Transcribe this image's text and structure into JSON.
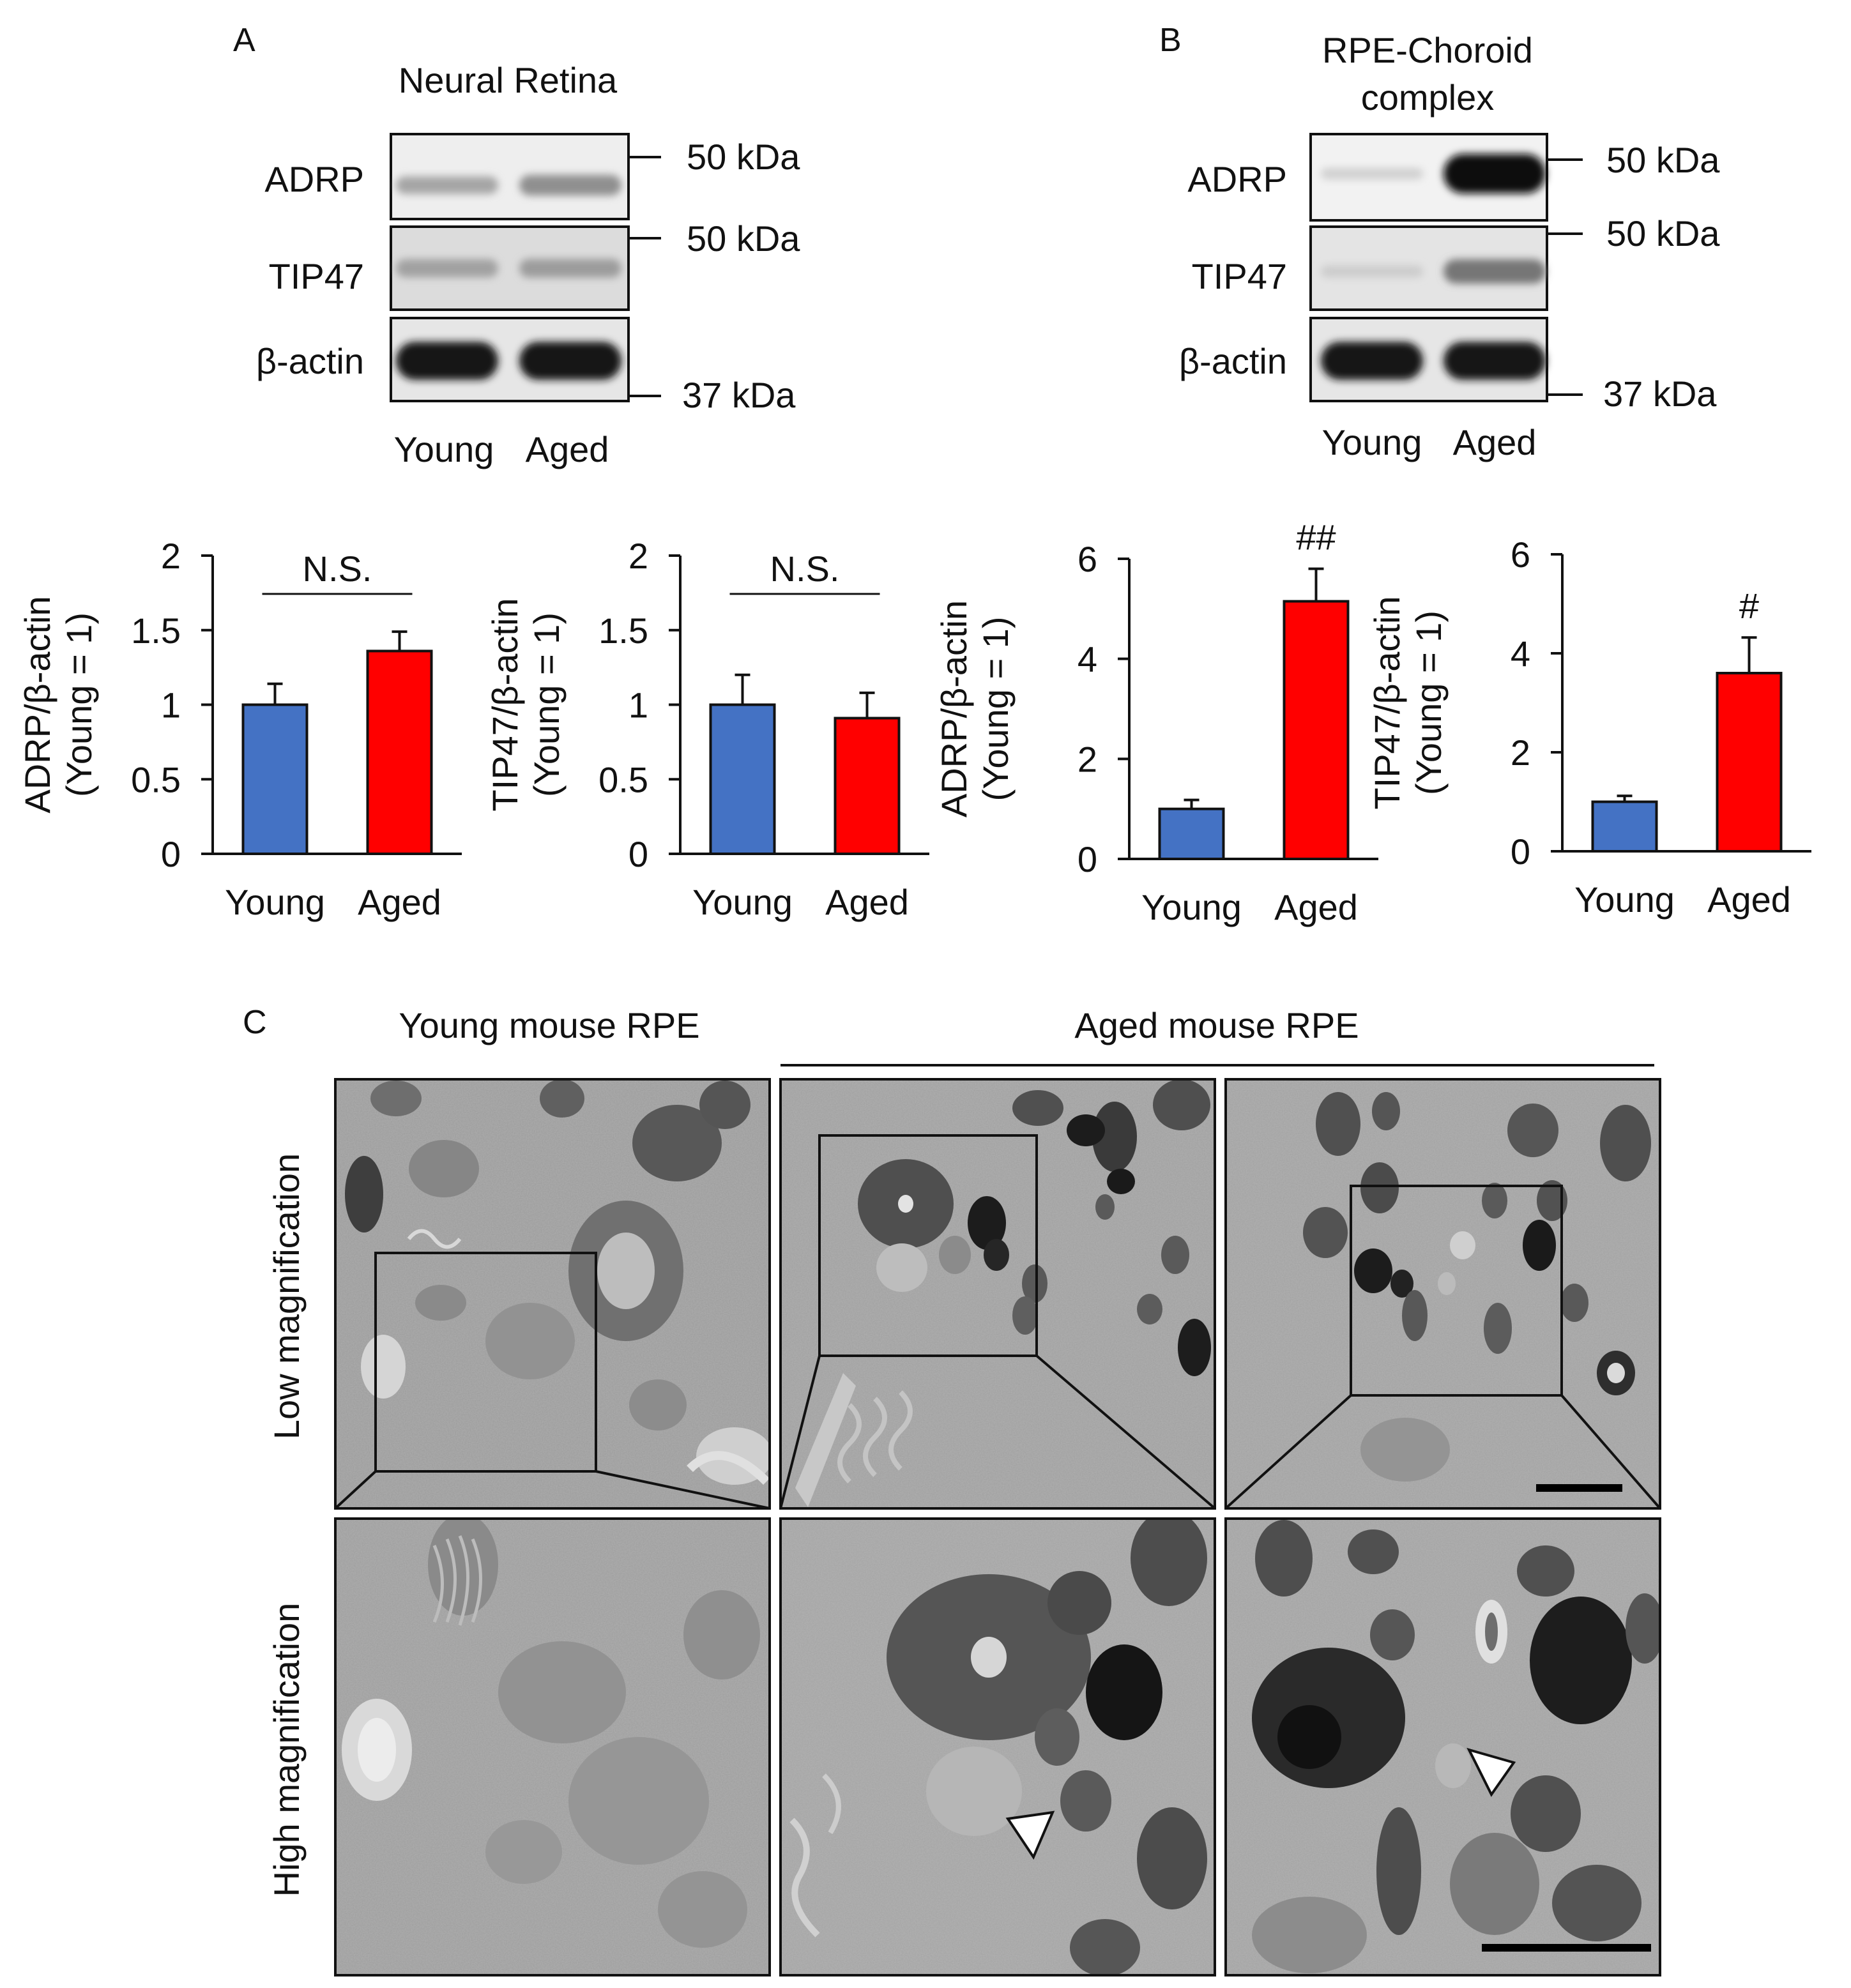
{
  "panel_letters": {
    "a": "A",
    "b": "B",
    "c": "C"
  },
  "panel_a": {
    "title": "Neural Retina",
    "blots": [
      {
        "label": "ADRP",
        "intensity": [
          0.28,
          0.38
        ]
      },
      {
        "label": "TIP47",
        "intensity": [
          0.3,
          0.32
        ]
      },
      {
        "label": "β-actin",
        "intensity": [
          0.95,
          0.95
        ]
      }
    ],
    "markers": [
      "50 kDa",
      "50 kDa",
      "37 kDa"
    ],
    "lanes": [
      "Young",
      "Aged"
    ]
  },
  "panel_b": {
    "title_line1": "RPE-Choroid",
    "title_line2": "complex",
    "blots": [
      {
        "label": "ADRP",
        "intensity": [
          0.08,
          1.0
        ]
      },
      {
        "label": "TIP47",
        "intensity": [
          0.1,
          0.5
        ]
      },
      {
        "label": "β-actin",
        "intensity": [
          0.95,
          0.95
        ]
      }
    ],
    "markers": [
      "50 kDa",
      "50 kDa",
      "37 kDa"
    ],
    "lanes": [
      "Young",
      "Aged"
    ]
  },
  "chart_data": [
    {
      "type": "bar",
      "categories": [
        "Young",
        "Aged"
      ],
      "values": [
        1.0,
        1.36
      ],
      "errors": [
        0.14,
        0.13
      ],
      "ylabel_line1": "ADRP/β-actin",
      "ylabel_line2": "(Young = 1)",
      "ylim": [
        0,
        2
      ],
      "yticks": [
        "0",
        "0.5",
        "1",
        "1.5",
        "2"
      ],
      "annotation": "N.S.",
      "annotation_type": "bracket"
    },
    {
      "type": "bar",
      "categories": [
        "Young",
        "Aged"
      ],
      "values": [
        1.0,
        0.91
      ],
      "errors": [
        0.2,
        0.17
      ],
      "ylabel_line1": "TIP47/β-actin",
      "ylabel_line2": "(Young = 1)",
      "ylim": [
        0,
        2
      ],
      "yticks": [
        "0",
        "0.5",
        "1",
        "1.5",
        "2"
      ],
      "annotation": "N.S.",
      "annotation_type": "bracket"
    },
    {
      "type": "bar",
      "categories": [
        "Young",
        "Aged"
      ],
      "values": [
        1.0,
        5.15
      ],
      "errors": [
        0.18,
        0.65
      ],
      "ylabel_line1": "ADRP/β-actin",
      "ylabel_line2": "(Young = 1)",
      "ylim": [
        0,
        6
      ],
      "yticks": [
        "0",
        "2",
        "4",
        "6"
      ],
      "annotation": "##",
      "annotation_type": "above"
    },
    {
      "type": "bar",
      "categories": [
        "Young",
        "Aged"
      ],
      "values": [
        1.0,
        3.6
      ],
      "errors": [
        0.12,
        0.72
      ],
      "ylabel_line1": "TIP47/β-actin",
      "ylabel_line2": "(Young = 1)",
      "ylim": [
        0,
        6
      ],
      "yticks": [
        "0",
        "2",
        "4",
        "6"
      ],
      "annotation": "#",
      "annotation_type": "above"
    }
  ],
  "colors": {
    "young": "#4472c4",
    "aged": "#ff0000",
    "em_bg": "#9a9a9a"
  },
  "panel_c": {
    "col_young": "Young mouse RPE",
    "col_aged": "Aged mouse RPE",
    "row_low": "Low magnification",
    "row_high": "High magnification"
  }
}
